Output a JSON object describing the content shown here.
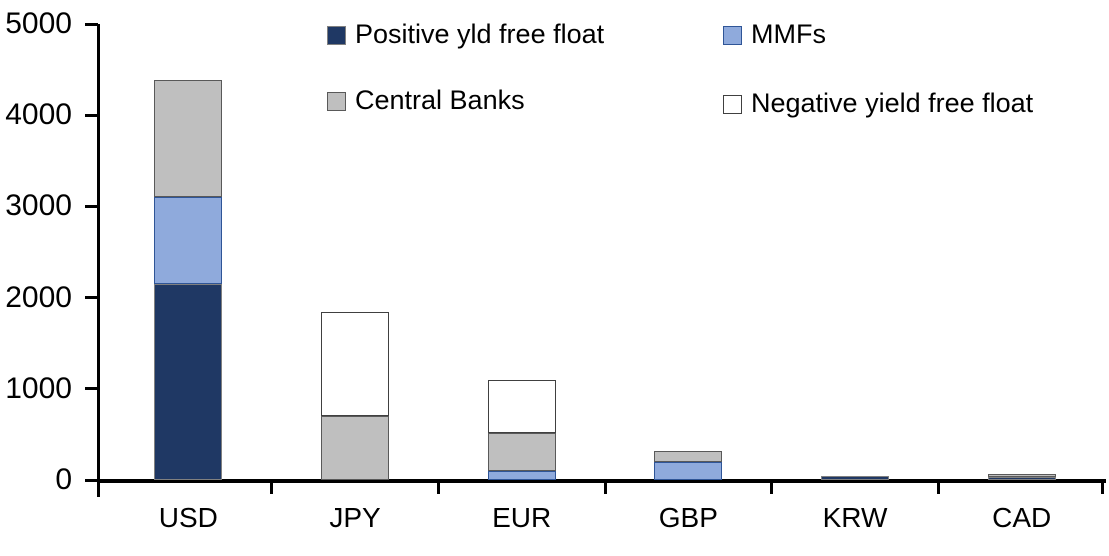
{
  "chart_data": {
    "type": "bar",
    "stacked": true,
    "title": "",
    "xlabel": "",
    "ylabel": "",
    "categories": [
      "USD",
      "JPY",
      "EUR",
      "GBP",
      "KRW",
      "CAD"
    ],
    "series": [
      {
        "name": "Positive yld free float",
        "color": "#1F3864",
        "border_color": "#808080",
        "values": [
          2150,
          0,
          0,
          0,
          45,
          30
        ]
      },
      {
        "name": "MMFs",
        "color": "#8FAADC",
        "border_color": "#2F5597",
        "values": [
          950,
          0,
          100,
          200,
          0,
          0
        ]
      },
      {
        "name": "Central Banks",
        "color": "#BFBFBF",
        "border_color": "#595959",
        "values": [
          1290,
          700,
          420,
          120,
          0,
          35
        ]
      },
      {
        "name": "Negative yield free float",
        "color": "#FFFFFF",
        "border_color": "#404040",
        "values": [
          0,
          1140,
          580,
          0,
          0,
          0
        ]
      }
    ],
    "totals": [
      4390,
      1840,
      1100,
      320,
      45,
      65
    ],
    "ylim": [
      0,
      5000
    ],
    "y_ticks": [
      "0",
      "1000",
      "2000",
      "3000",
      "4000",
      "5000"
    ],
    "grid": false,
    "legend_position": "top",
    "legend_rows": 2,
    "background": "#FFFFFF",
    "axis_color": "#000000",
    "text_color": "#000000"
  }
}
